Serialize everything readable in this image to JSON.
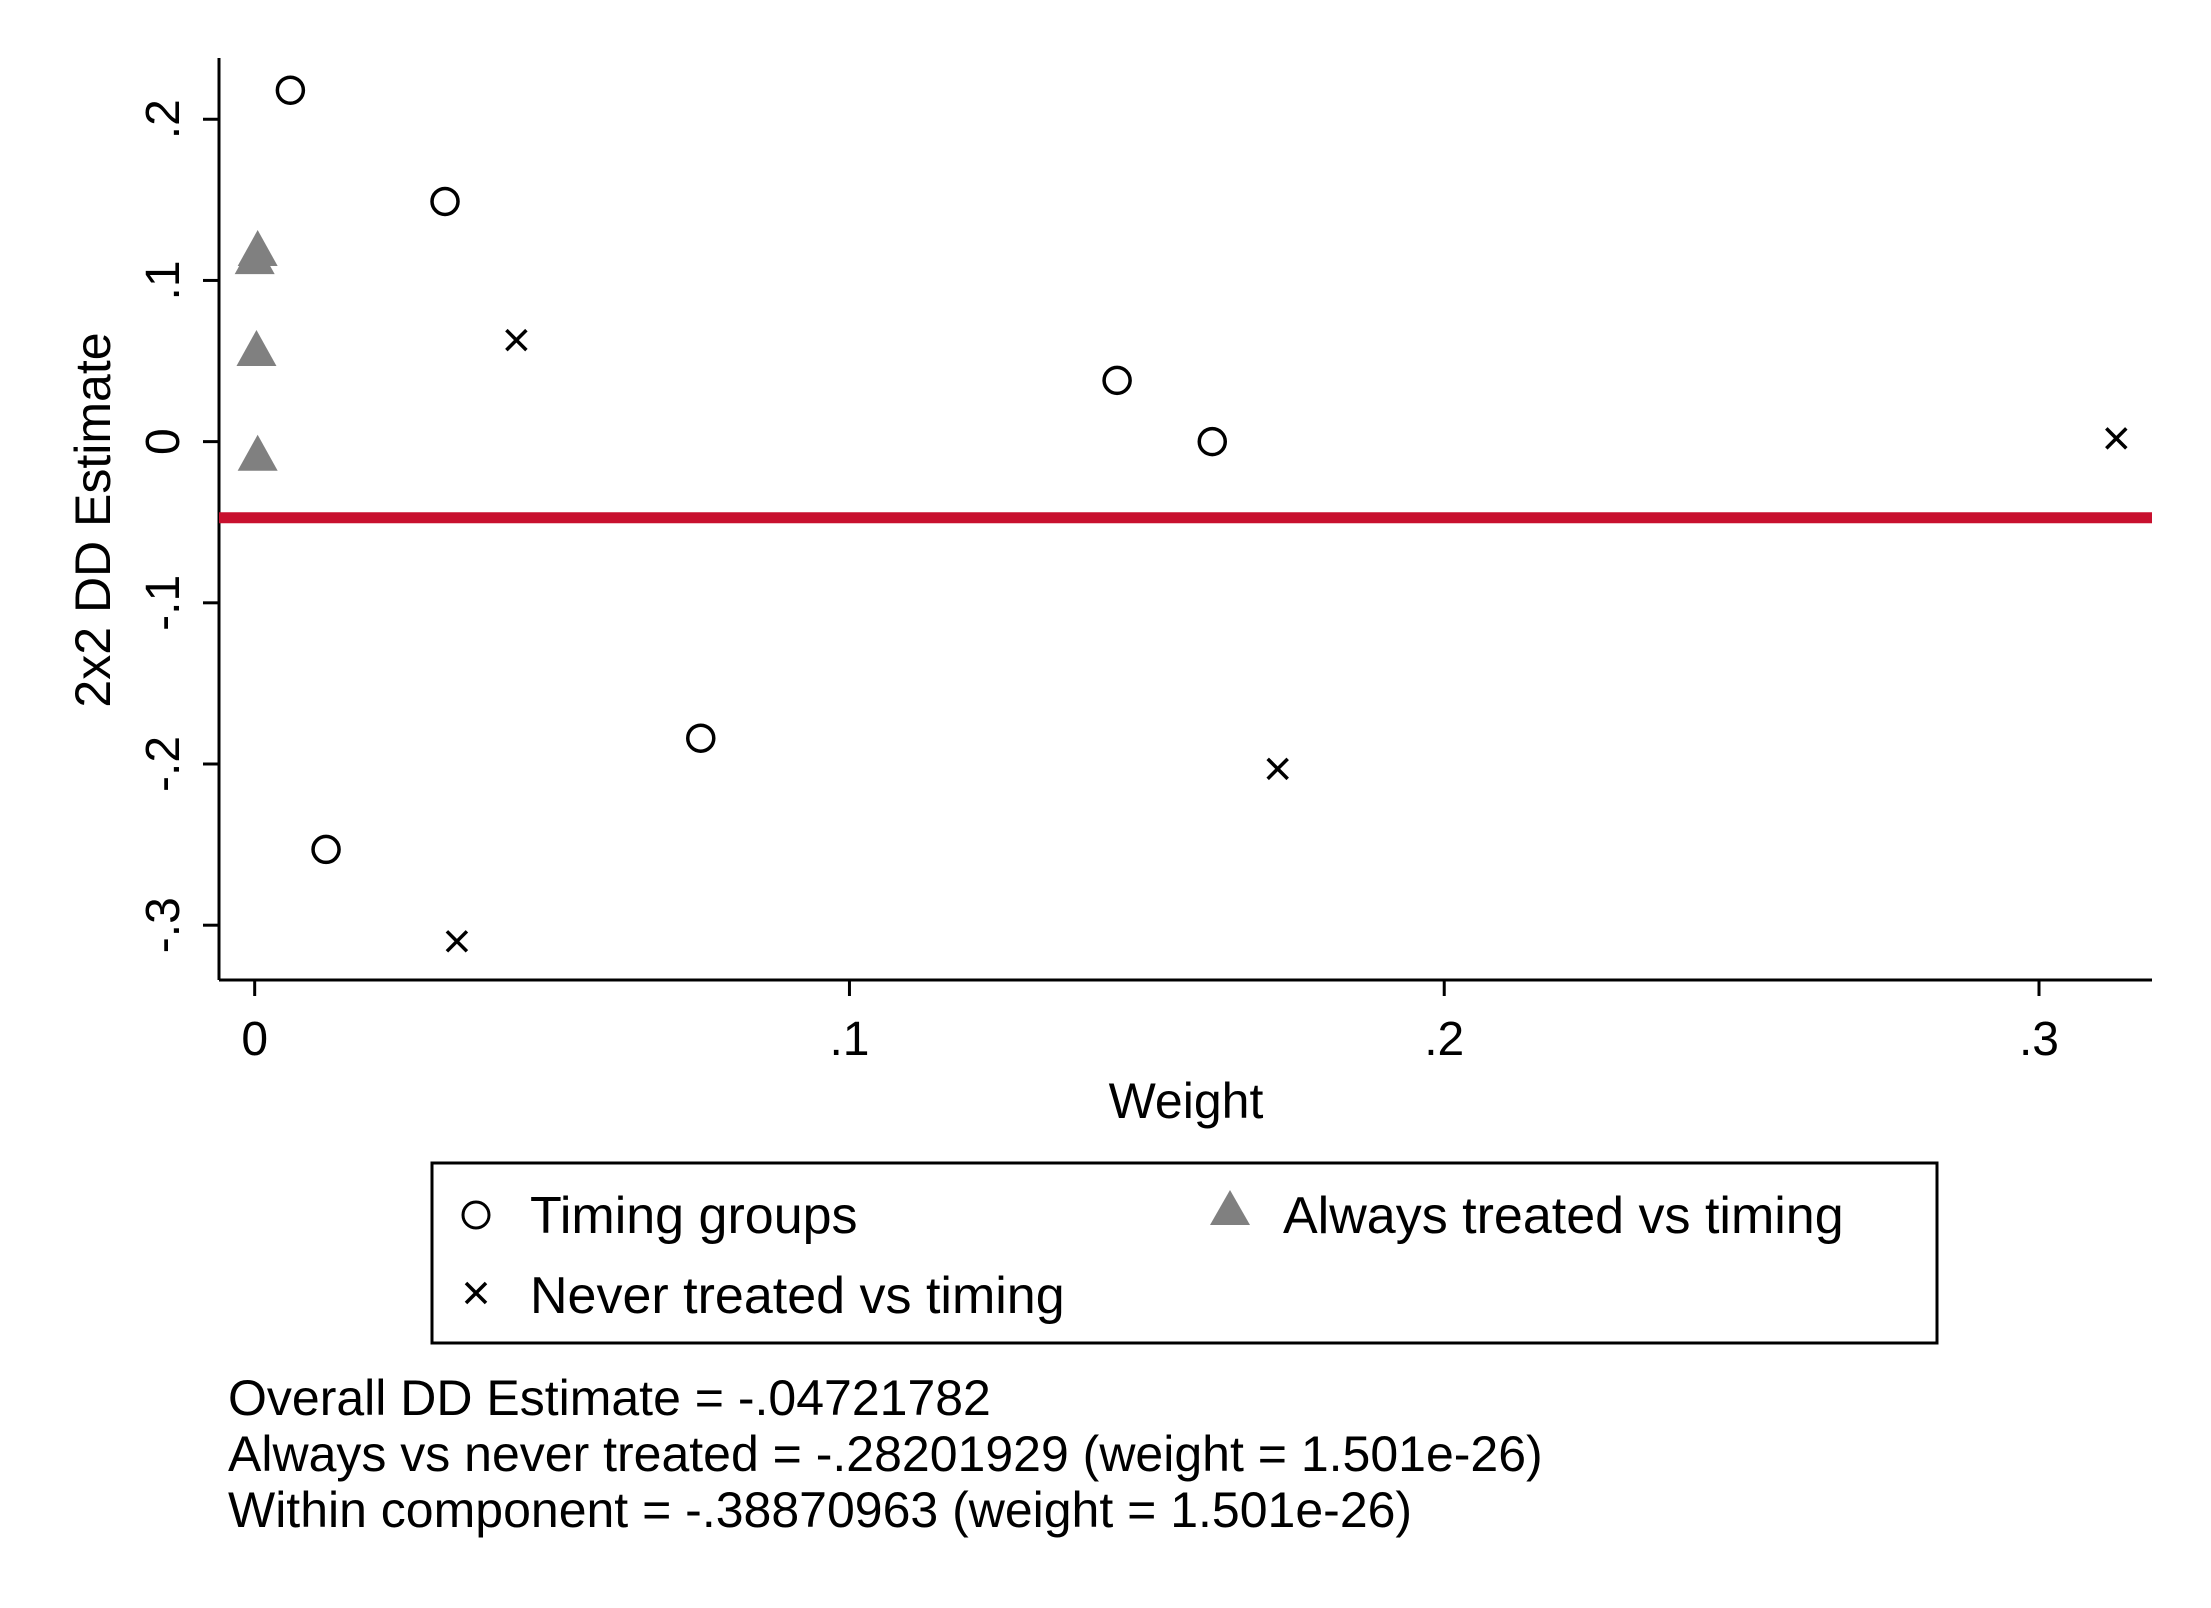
{
  "chart_data": {
    "type": "scatter",
    "xlabel": "Weight",
    "ylabel": "2x2 DD Estimate",
    "xlim": [
      -0.006,
      0.319
    ],
    "ylim": [
      -0.334,
      0.238
    ],
    "x_ticks": [
      {
        "value": 0,
        "label": "0"
      },
      {
        "value": 0.1,
        "label": ".1"
      },
      {
        "value": 0.2,
        "label": ".2"
      },
      {
        "value": 0.3,
        "label": ".3"
      }
    ],
    "y_ticks": [
      {
        "value": -0.3,
        "label": "-.3"
      },
      {
        "value": -0.2,
        "label": "-.2"
      },
      {
        "value": -0.1,
        "label": "-.1"
      },
      {
        "value": 0,
        "label": "0"
      },
      {
        "value": 0.1,
        "label": ".1"
      },
      {
        "value": 0.2,
        "label": ".2"
      }
    ],
    "grid": false,
    "series": [
      {
        "name": "Timing groups",
        "marker": "circle",
        "color": "#000000",
        "points": [
          {
            "x": 0.006,
            "y": 0.218
          },
          {
            "x": 0.032,
            "y": 0.149
          },
          {
            "x": 0.012,
            "y": -0.253
          },
          {
            "x": 0.075,
            "y": -0.184
          },
          {
            "x": 0.145,
            "y": 0.038
          },
          {
            "x": 0.161,
            "y": 0.0
          }
        ]
      },
      {
        "name": "Never treated vs timing",
        "marker": "x",
        "color": "#000000",
        "points": [
          {
            "x": 0.044,
            "y": 0.063
          },
          {
            "x": 0.034,
            "y": -0.31
          },
          {
            "x": 0.172,
            "y": -0.203
          },
          {
            "x": 0.313,
            "y": 0.002
          }
        ]
      },
      {
        "name": "Always treated vs timing",
        "marker": "triangle",
        "color": "#808080",
        "points": [
          {
            "x": 0.0005,
            "y": 0.117
          },
          {
            "x": 0.0,
            "y": 0.112
          },
          {
            "x": 0.0003,
            "y": 0.055
          },
          {
            "x": 0.0005,
            "y": -0.01
          }
        ]
      }
    ],
    "reference_line": {
      "y": -0.04721782,
      "color": "#c8102e"
    },
    "legend": {
      "placement": "bottom",
      "items": [
        {
          "label": "Timing groups",
          "marker": "circle",
          "color": "#000000"
        },
        {
          "label": "Always treated vs timing",
          "marker": "triangle",
          "color": "#808080"
        },
        {
          "label": "Never treated vs timing",
          "marker": "x",
          "color": "#000000"
        }
      ]
    },
    "notes": [
      "Overall DD Estimate = -.04721782",
      "Always vs never treated = -.28201929 (weight = 1.501e-26)",
      "Within component = -.38870963 (weight = 1.501e-26)"
    ]
  }
}
